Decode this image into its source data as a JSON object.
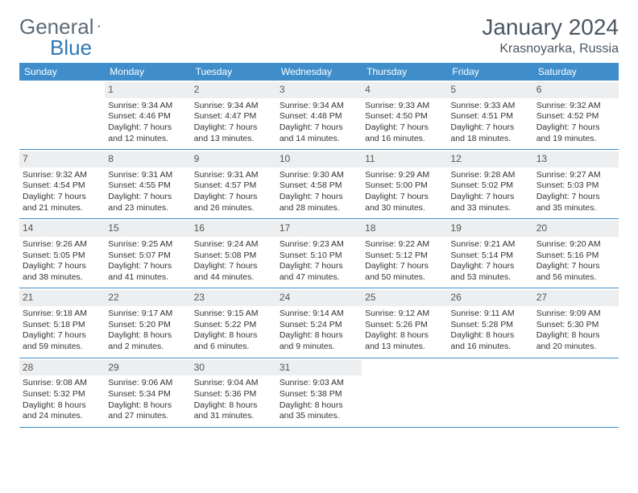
{
  "logo": {
    "text1": "General",
    "text2": "Blue"
  },
  "title": "January 2024",
  "location": "Krasnoyarka, Russia",
  "colors": {
    "header_bg": "#3f8ecb",
    "header_text": "#ffffff",
    "daynum_bg": "#eceef0",
    "border": "#3f8ecb",
    "title_color": "#4a5662",
    "logo_gray": "#5d6b78",
    "logo_blue": "#2f77b6"
  },
  "day_names": [
    "Sunday",
    "Monday",
    "Tuesday",
    "Wednesday",
    "Thursday",
    "Friday",
    "Saturday"
  ],
  "weeks": [
    [
      {
        "n": "",
        "empty": true
      },
      {
        "n": "1",
        "sr": "Sunrise: 9:34 AM",
        "ss": "Sunset: 4:46 PM",
        "d1": "Daylight: 7 hours",
        "d2": "and 12 minutes."
      },
      {
        "n": "2",
        "sr": "Sunrise: 9:34 AM",
        "ss": "Sunset: 4:47 PM",
        "d1": "Daylight: 7 hours",
        "d2": "and 13 minutes."
      },
      {
        "n": "3",
        "sr": "Sunrise: 9:34 AM",
        "ss": "Sunset: 4:48 PM",
        "d1": "Daylight: 7 hours",
        "d2": "and 14 minutes."
      },
      {
        "n": "4",
        "sr": "Sunrise: 9:33 AM",
        "ss": "Sunset: 4:50 PM",
        "d1": "Daylight: 7 hours",
        "d2": "and 16 minutes."
      },
      {
        "n": "5",
        "sr": "Sunrise: 9:33 AM",
        "ss": "Sunset: 4:51 PM",
        "d1": "Daylight: 7 hours",
        "d2": "and 18 minutes."
      },
      {
        "n": "6",
        "sr": "Sunrise: 9:32 AM",
        "ss": "Sunset: 4:52 PM",
        "d1": "Daylight: 7 hours",
        "d2": "and 19 minutes."
      }
    ],
    [
      {
        "n": "7",
        "sr": "Sunrise: 9:32 AM",
        "ss": "Sunset: 4:54 PM",
        "d1": "Daylight: 7 hours",
        "d2": "and 21 minutes."
      },
      {
        "n": "8",
        "sr": "Sunrise: 9:31 AM",
        "ss": "Sunset: 4:55 PM",
        "d1": "Daylight: 7 hours",
        "d2": "and 23 minutes."
      },
      {
        "n": "9",
        "sr": "Sunrise: 9:31 AM",
        "ss": "Sunset: 4:57 PM",
        "d1": "Daylight: 7 hours",
        "d2": "and 26 minutes."
      },
      {
        "n": "10",
        "sr": "Sunrise: 9:30 AM",
        "ss": "Sunset: 4:58 PM",
        "d1": "Daylight: 7 hours",
        "d2": "and 28 minutes."
      },
      {
        "n": "11",
        "sr": "Sunrise: 9:29 AM",
        "ss": "Sunset: 5:00 PM",
        "d1": "Daylight: 7 hours",
        "d2": "and 30 minutes."
      },
      {
        "n": "12",
        "sr": "Sunrise: 9:28 AM",
        "ss": "Sunset: 5:02 PM",
        "d1": "Daylight: 7 hours",
        "d2": "and 33 minutes."
      },
      {
        "n": "13",
        "sr": "Sunrise: 9:27 AM",
        "ss": "Sunset: 5:03 PM",
        "d1": "Daylight: 7 hours",
        "d2": "and 35 minutes."
      }
    ],
    [
      {
        "n": "14",
        "sr": "Sunrise: 9:26 AM",
        "ss": "Sunset: 5:05 PM",
        "d1": "Daylight: 7 hours",
        "d2": "and 38 minutes."
      },
      {
        "n": "15",
        "sr": "Sunrise: 9:25 AM",
        "ss": "Sunset: 5:07 PM",
        "d1": "Daylight: 7 hours",
        "d2": "and 41 minutes."
      },
      {
        "n": "16",
        "sr": "Sunrise: 9:24 AM",
        "ss": "Sunset: 5:08 PM",
        "d1": "Daylight: 7 hours",
        "d2": "and 44 minutes."
      },
      {
        "n": "17",
        "sr": "Sunrise: 9:23 AM",
        "ss": "Sunset: 5:10 PM",
        "d1": "Daylight: 7 hours",
        "d2": "and 47 minutes."
      },
      {
        "n": "18",
        "sr": "Sunrise: 9:22 AM",
        "ss": "Sunset: 5:12 PM",
        "d1": "Daylight: 7 hours",
        "d2": "and 50 minutes."
      },
      {
        "n": "19",
        "sr": "Sunrise: 9:21 AM",
        "ss": "Sunset: 5:14 PM",
        "d1": "Daylight: 7 hours",
        "d2": "and 53 minutes."
      },
      {
        "n": "20",
        "sr": "Sunrise: 9:20 AM",
        "ss": "Sunset: 5:16 PM",
        "d1": "Daylight: 7 hours",
        "d2": "and 56 minutes."
      }
    ],
    [
      {
        "n": "21",
        "sr": "Sunrise: 9:18 AM",
        "ss": "Sunset: 5:18 PM",
        "d1": "Daylight: 7 hours",
        "d2": "and 59 minutes."
      },
      {
        "n": "22",
        "sr": "Sunrise: 9:17 AM",
        "ss": "Sunset: 5:20 PM",
        "d1": "Daylight: 8 hours",
        "d2": "and 2 minutes."
      },
      {
        "n": "23",
        "sr": "Sunrise: 9:15 AM",
        "ss": "Sunset: 5:22 PM",
        "d1": "Daylight: 8 hours",
        "d2": "and 6 minutes."
      },
      {
        "n": "24",
        "sr": "Sunrise: 9:14 AM",
        "ss": "Sunset: 5:24 PM",
        "d1": "Daylight: 8 hours",
        "d2": "and 9 minutes."
      },
      {
        "n": "25",
        "sr": "Sunrise: 9:12 AM",
        "ss": "Sunset: 5:26 PM",
        "d1": "Daylight: 8 hours",
        "d2": "and 13 minutes."
      },
      {
        "n": "26",
        "sr": "Sunrise: 9:11 AM",
        "ss": "Sunset: 5:28 PM",
        "d1": "Daylight: 8 hours",
        "d2": "and 16 minutes."
      },
      {
        "n": "27",
        "sr": "Sunrise: 9:09 AM",
        "ss": "Sunset: 5:30 PM",
        "d1": "Daylight: 8 hours",
        "d2": "and 20 minutes."
      }
    ],
    [
      {
        "n": "28",
        "sr": "Sunrise: 9:08 AM",
        "ss": "Sunset: 5:32 PM",
        "d1": "Daylight: 8 hours",
        "d2": "and 24 minutes."
      },
      {
        "n": "29",
        "sr": "Sunrise: 9:06 AM",
        "ss": "Sunset: 5:34 PM",
        "d1": "Daylight: 8 hours",
        "d2": "and 27 minutes."
      },
      {
        "n": "30",
        "sr": "Sunrise: 9:04 AM",
        "ss": "Sunset: 5:36 PM",
        "d1": "Daylight: 8 hours",
        "d2": "and 31 minutes."
      },
      {
        "n": "31",
        "sr": "Sunrise: 9:03 AM",
        "ss": "Sunset: 5:38 PM",
        "d1": "Daylight: 8 hours",
        "d2": "and 35 minutes."
      },
      {
        "n": "",
        "empty": true
      },
      {
        "n": "",
        "empty": true
      },
      {
        "n": "",
        "empty": true
      }
    ]
  ]
}
